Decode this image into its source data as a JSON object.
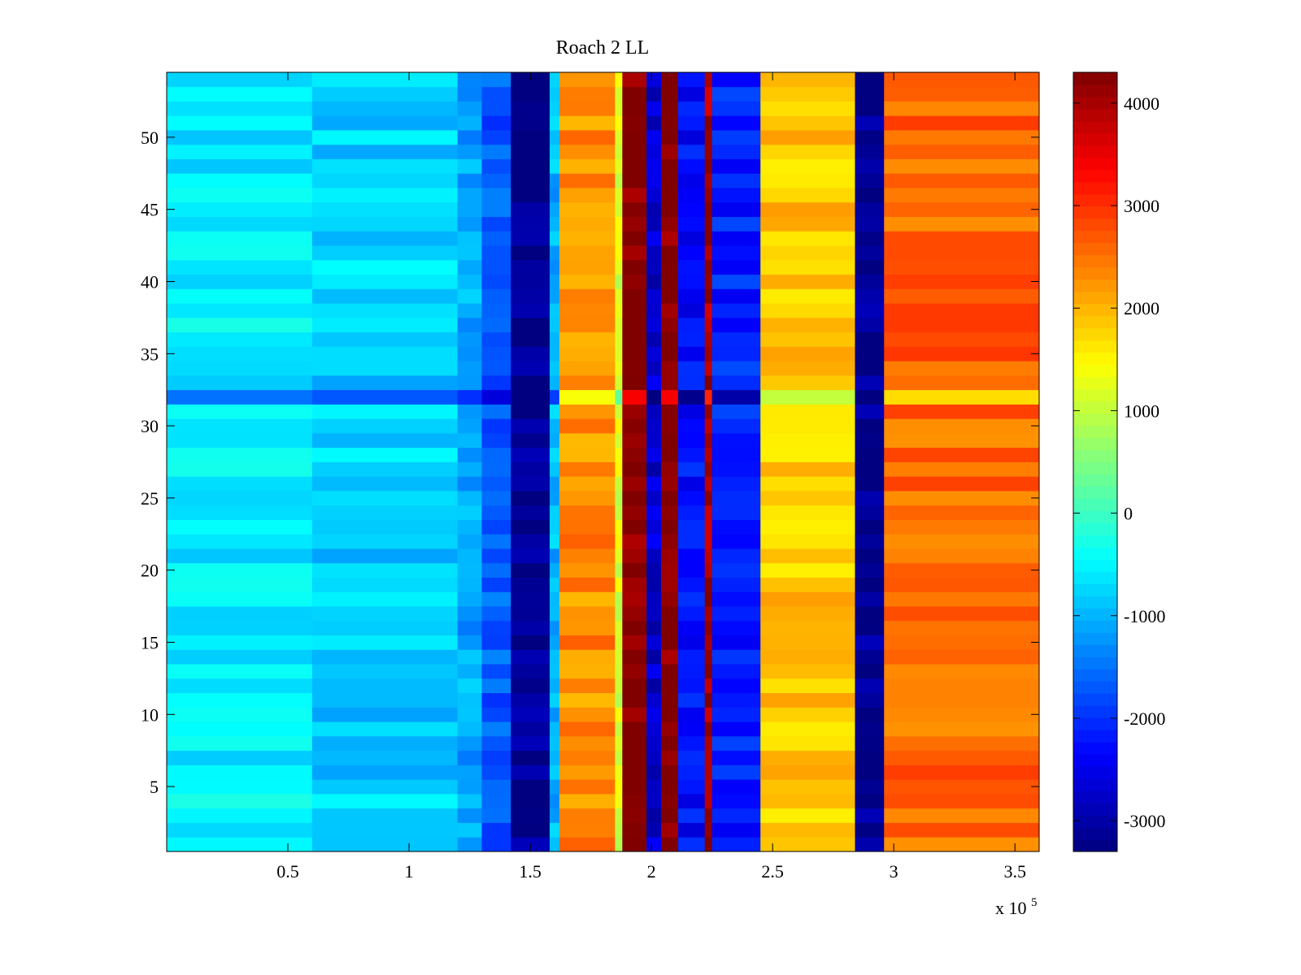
{
  "chart_data": {
    "type": "heatmap",
    "title": "Roach 2 LL",
    "xlabel": "",
    "ylabel": "",
    "x_exponent_label": "x 10",
    "x_exponent_power": "5",
    "xlim": [
      0,
      360000
    ],
    "ylim": [
      0.5,
      54.5
    ],
    "x_ticks": [
      0.5,
      1,
      1.5,
      2,
      2.5,
      3,
      3.5
    ],
    "x_tick_labels": [
      "0.5",
      "1",
      "1.5",
      "2",
      "2.5",
      "3",
      "3.5"
    ],
    "y_ticks": [
      5,
      10,
      15,
      20,
      25,
      30,
      35,
      40,
      45,
      50
    ],
    "y_tick_labels": [
      "5",
      "10",
      "15",
      "20",
      "25",
      "30",
      "35",
      "40",
      "45",
      "50"
    ],
    "rows": 54,
    "colormap": "jet",
    "color_range": [
      -3300,
      4300
    ],
    "colorbar": {
      "position": "right",
      "ticks": [
        -3000,
        -2000,
        -1000,
        0,
        1000,
        2000,
        3000,
        4000
      ],
      "tick_labels": [
        "-3000",
        "-2000",
        "-1000",
        "0",
        "1000",
        "2000",
        "3000",
        "4000"
      ]
    },
    "column_segments": [
      {
        "x_start": 0,
        "x_end": 60000,
        "value": -600
      },
      {
        "x_start": 60000,
        "x_end": 120000,
        "value": -800
      },
      {
        "x_start": 120000,
        "x_end": 130000,
        "value": -1100
      },
      {
        "x_start": 130000,
        "x_end": 142000,
        "value": -1700
      },
      {
        "x_start": 142000,
        "x_end": 158000,
        "value": -3200
      },
      {
        "x_start": 158000,
        "x_end": 162000,
        "value": -1000
      },
      {
        "x_start": 162000,
        "x_end": 185000,
        "value": 2300
      },
      {
        "x_start": 185000,
        "x_end": 188000,
        "value": 1200
      },
      {
        "x_start": 188000,
        "x_end": 198000,
        "value": 4300
      },
      {
        "x_start": 198000,
        "x_end": 204000,
        "value": -2700
      },
      {
        "x_start": 204000,
        "x_end": 211000,
        "value": 4300
      },
      {
        "x_start": 211000,
        "x_end": 222000,
        "value": -2300
      },
      {
        "x_start": 222000,
        "x_end": 225000,
        "value": 4000
      },
      {
        "x_start": 225000,
        "x_end": 245000,
        "value": -2100
      },
      {
        "x_start": 245000,
        "x_end": 284000,
        "value": 1900
      },
      {
        "x_start": 284000,
        "x_end": 296000,
        "value": -3200
      },
      {
        "x_start": 296000,
        "x_end": 360000,
        "value": 2600
      }
    ],
    "highlight_row": 32
  },
  "colors": {
    "axis": "#000000",
    "background": "#ffffff"
  }
}
